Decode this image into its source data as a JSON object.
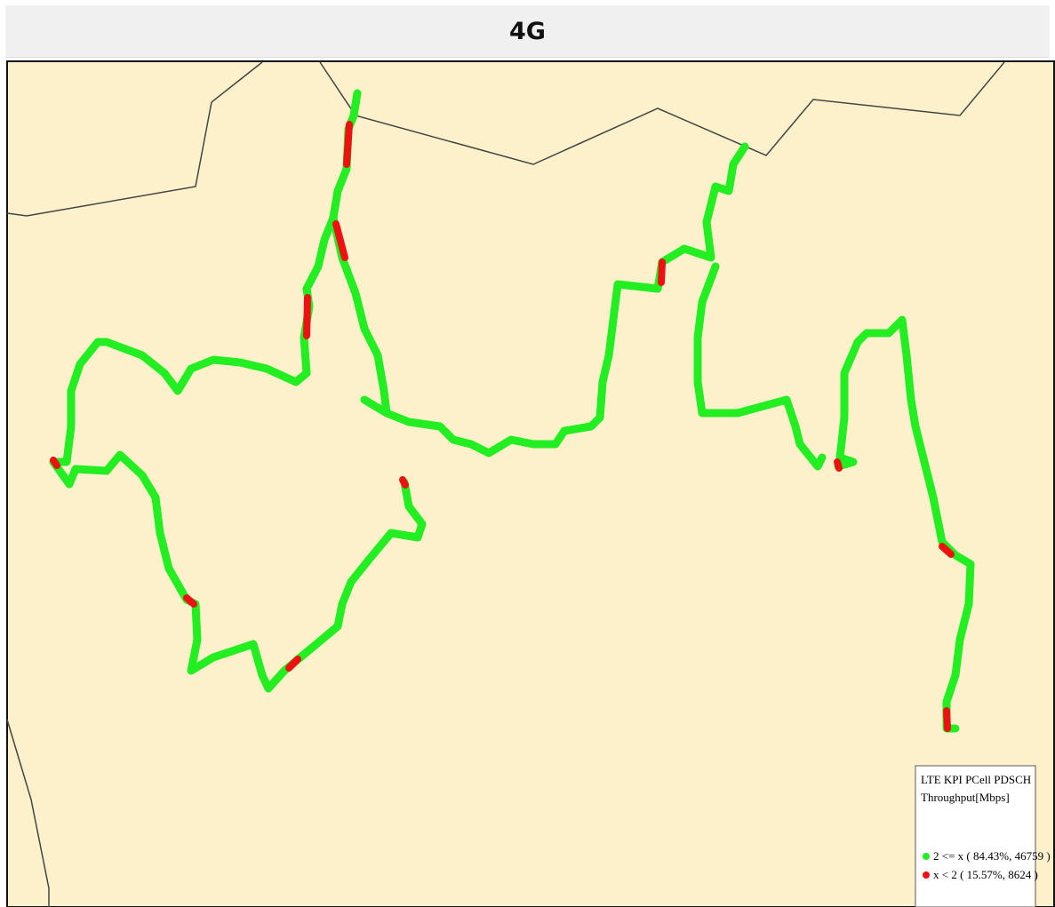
{
  "header": {
    "title": "4G"
  },
  "legend": {
    "title_lines": [
      "LTE KPI PCell PDSCH",
      "Throughput[Mbps]"
    ],
    "items": [
      {
        "label": "2 <= x ( 84.43%, 46759 )",
        "color": "#22ee22"
      },
      {
        "label": "x < 2 ( 15.57%, 8624 )",
        "color": "#ee1111"
      }
    ]
  }
}
